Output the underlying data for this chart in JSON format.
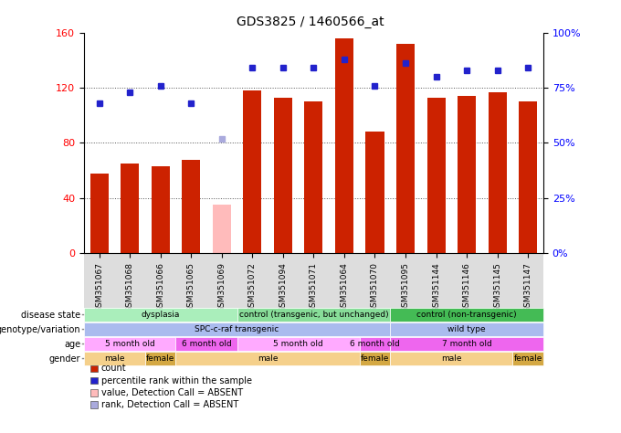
{
  "title": "GDS3825 / 1460566_at",
  "samples": [
    "GSM351067",
    "GSM351068",
    "GSM351066",
    "GSM351065",
    "GSM351069",
    "GSM351072",
    "GSM351094",
    "GSM351071",
    "GSM351064",
    "GSM351070",
    "GSM351095",
    "GSM351144",
    "GSM351146",
    "GSM351145",
    "GSM351147"
  ],
  "bar_values": [
    58,
    65,
    63,
    68,
    35,
    118,
    113,
    110,
    156,
    88,
    152,
    113,
    114,
    117,
    110
  ],
  "bar_colors": [
    "#cc2200",
    "#cc2200",
    "#cc2200",
    "#cc2200",
    "#ffbbbb",
    "#cc2200",
    "#cc2200",
    "#cc2200",
    "#cc2200",
    "#cc2200",
    "#cc2200",
    "#cc2200",
    "#cc2200",
    "#cc2200",
    "#cc2200"
  ],
  "percentile_values": [
    68,
    73,
    76,
    68,
    52,
    84,
    84,
    84,
    88,
    76,
    86,
    80,
    83,
    83,
    84
  ],
  "percentile_colors": [
    "#2222cc",
    "#2222cc",
    "#2222cc",
    "#2222cc",
    "#aaaadd",
    "#2222cc",
    "#2222cc",
    "#2222cc",
    "#2222cc",
    "#2222cc",
    "#2222cc",
    "#2222cc",
    "#2222cc",
    "#2222cc",
    "#2222cc"
  ],
  "ylim_left": [
    0,
    160
  ],
  "ylim_right": [
    0,
    100
  ],
  "yticks_left": [
    0,
    40,
    80,
    120,
    160
  ],
  "yticks_right": [
    0,
    25,
    50,
    75,
    100
  ],
  "yticklabels_right": [
    "0%",
    "25%",
    "50%",
    "75%",
    "100%"
  ],
  "grid_lines": [
    40,
    80,
    120
  ],
  "title_fontsize": 10,
  "disease_state_groups": [
    {
      "label": "dysplasia",
      "start": 0,
      "end": 5,
      "color": "#aaeebb"
    },
    {
      "label": "control (transgenic, but unchanged)",
      "start": 5,
      "end": 10,
      "color": "#88dd99"
    },
    {
      "label": "control (non-transgenic)",
      "start": 10,
      "end": 15,
      "color": "#44bb55"
    }
  ],
  "genotype_groups": [
    {
      "label": "SPC-c-raf transgenic",
      "start": 0,
      "end": 10,
      "color": "#aabbee"
    },
    {
      "label": "wild type",
      "start": 10,
      "end": 15,
      "color": "#aabbee"
    }
  ],
  "age_groups": [
    {
      "label": "5 month old",
      "start": 0,
      "end": 3,
      "color": "#ffaaff"
    },
    {
      "label": "6 month old",
      "start": 3,
      "end": 5,
      "color": "#ee66ee"
    },
    {
      "label": "5 month old",
      "start": 5,
      "end": 9,
      "color": "#ffaaff"
    },
    {
      "label": "6 month old",
      "start": 9,
      "end": 10,
      "color": "#ee66ee"
    },
    {
      "label": "7 month old",
      "start": 10,
      "end": 15,
      "color": "#ee66ee"
    }
  ],
  "gender_groups": [
    {
      "label": "male",
      "start": 0,
      "end": 2,
      "color": "#f5d08b"
    },
    {
      "label": "female",
      "start": 2,
      "end": 3,
      "color": "#d4a843"
    },
    {
      "label": "male",
      "start": 3,
      "end": 9,
      "color": "#f5d08b"
    },
    {
      "label": "female",
      "start": 9,
      "end": 10,
      "color": "#d4a843"
    },
    {
      "label": "male",
      "start": 10,
      "end": 14,
      "color": "#f5d08b"
    },
    {
      "label": "female",
      "start": 14,
      "end": 15,
      "color": "#d4a843"
    }
  ],
  "row_labels": [
    "disease state",
    "genotype/variation",
    "age",
    "gender"
  ],
  "legend_items": [
    {
      "color": "#cc2200",
      "label": "count"
    },
    {
      "color": "#2222cc",
      "label": "percentile rank within the sample"
    },
    {
      "color": "#ffbbbb",
      "label": "value, Detection Call = ABSENT"
    },
    {
      "color": "#aaaadd",
      "label": "rank, Detection Call = ABSENT"
    }
  ]
}
